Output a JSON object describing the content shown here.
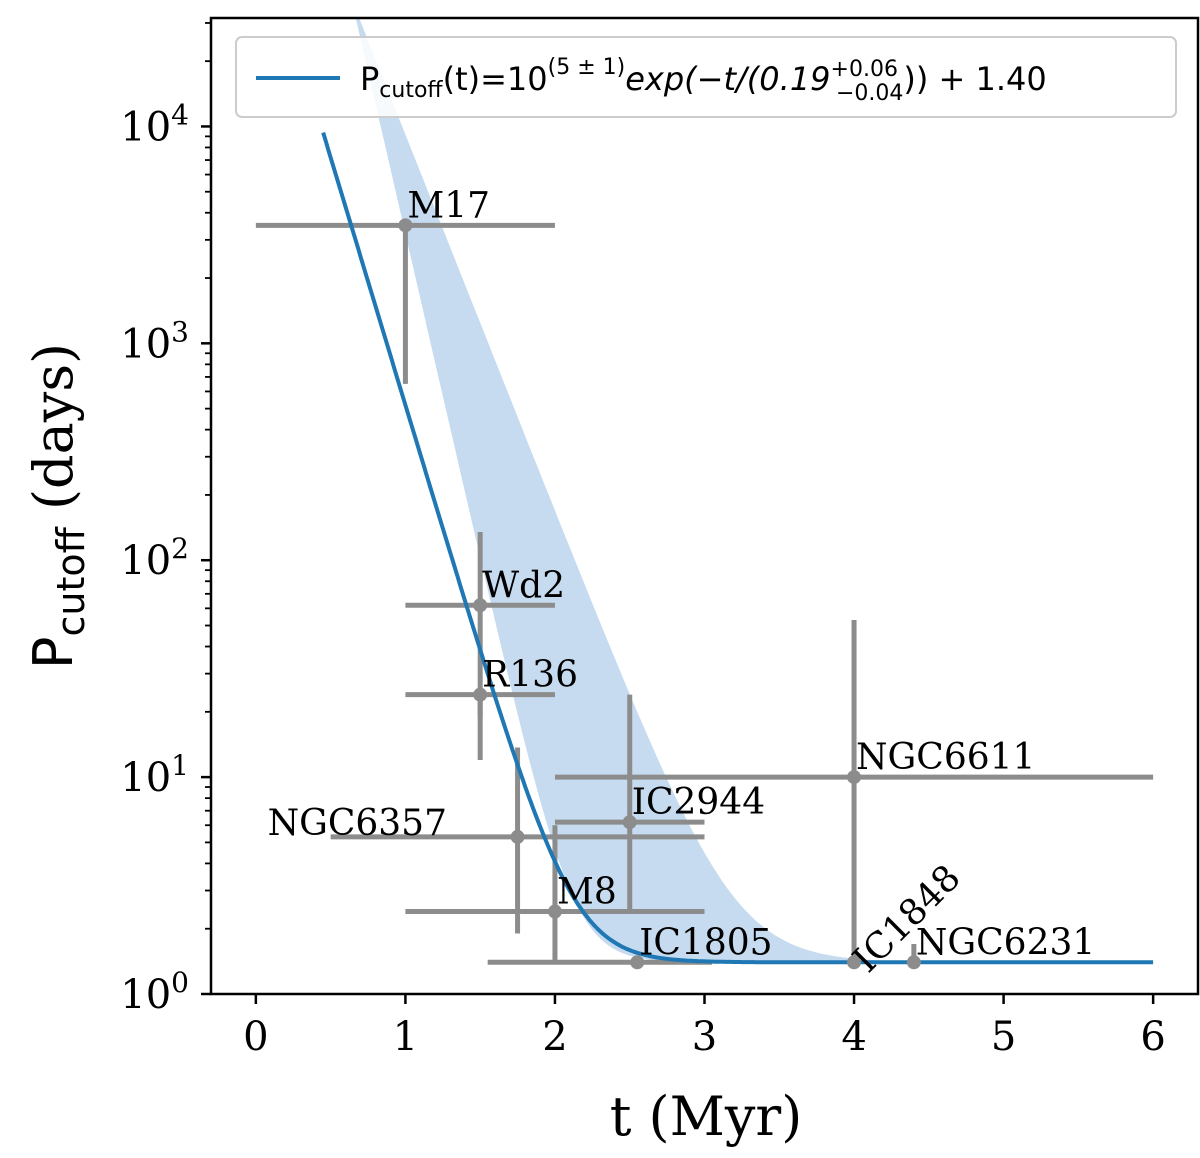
{
  "chart_data": {
    "type": "scatter",
    "xlabel": "t (Myr)",
    "ylabel_main": "P",
    "ylabel_sub": "cutoff",
    "ylabel_unit": " (days)",
    "xlim": [
      -0.3,
      6.3
    ],
    "ylim_log10": [
      0,
      4.5
    ],
    "yscale": "log",
    "x_ticks": [
      0,
      1,
      2,
      3,
      4,
      5,
      6
    ],
    "x_tick_labels": [
      "0",
      "1",
      "2",
      "3",
      "4",
      "5",
      "6"
    ],
    "y_ticks": [
      0,
      1,
      2,
      3,
      4
    ],
    "y_tick_base": "10",
    "y_tick_exps": [
      "0",
      "1",
      "2",
      "3",
      "4"
    ],
    "legend": {
      "location": "top-right",
      "color": "#1f77b4",
      "text_p": "P",
      "text_cutoff": "cutoff",
      "text_mid": "(t)=10",
      "text_exp": "(5 ± 1)",
      "text_func": "exp(−t/(0.19",
      "text_plus": "+0.06",
      "text_minus": "−0.04",
      "text_tail": ")) + 1.40"
    },
    "fit": {
      "name": "fit",
      "amplitude_log10": 5,
      "tau": 0.19,
      "offset": 1.4,
      "t_start": 0.45,
      "t_end": 6.0,
      "color": "#1f77b4",
      "band_color": "#c6dbef",
      "band_upper_amplitude_log10": 5.7,
      "band_upper_tau": 0.25,
      "band_lower_amplitude_log10": 6.5,
      "band_lower_tau": 0.145
    },
    "points": [
      {
        "label": "M17",
        "x": 1.0,
        "y": 3500,
        "xerr": [
          1.0,
          1.0
        ],
        "yerr": [
          2850,
          0
        ],
        "label_rotated": false
      },
      {
        "label": "Wd2",
        "x": 1.5,
        "y": 62,
        "xerr": [
          0.5,
          0.5
        ],
        "yerr": [
          50,
          73
        ],
        "label_rotated": false
      },
      {
        "label": "R136",
        "x": 1.5,
        "y": 24,
        "xerr": [
          0.5,
          0.5
        ],
        "yerr": [
          5,
          0
        ],
        "label_rotated": false
      },
      {
        "label": "NGC6357",
        "x": 1.75,
        "y": 5.3,
        "xerr": [
          1.25,
          1.25
        ],
        "yerr": [
          3.4,
          8.4
        ],
        "label_rotated": false
      },
      {
        "label": "IC2944",
        "x": 2.5,
        "y": 6.2,
        "xerr": [
          0.5,
          0.5
        ],
        "yerr": [
          3.8,
          17.8
        ],
        "label_rotated": false
      },
      {
        "label": "NGC6611",
        "x": 4.0,
        "y": 10,
        "xerr": [
          2.0,
          2.0
        ],
        "yerr": [
          8.6,
          43
        ],
        "label_rotated": false
      },
      {
        "label": "M8",
        "x": 2.0,
        "y": 2.4,
        "xerr": [
          1.0,
          1.0
        ],
        "yerr": [
          1.0,
          3.6
        ],
        "label_rotated": false
      },
      {
        "label": "IC1805",
        "x": 2.55,
        "y": 1.4,
        "xerr": [
          1.0,
          0.5
        ],
        "yerr": [
          0,
          0
        ],
        "label_rotated": false
      },
      {
        "label": "IC1848",
        "x": 4.0,
        "y": 1.4,
        "xerr": [
          0,
          0
        ],
        "yerr": [
          0,
          0
        ],
        "label_rotated": true
      },
      {
        "label": "NGC6231",
        "x": 4.4,
        "y": 1.4,
        "xerr": [
          0,
          0
        ],
        "yerr": [
          0,
          0.3
        ],
        "label_rotated": false
      }
    ],
    "errorbar_color": "#8c8c8c"
  }
}
